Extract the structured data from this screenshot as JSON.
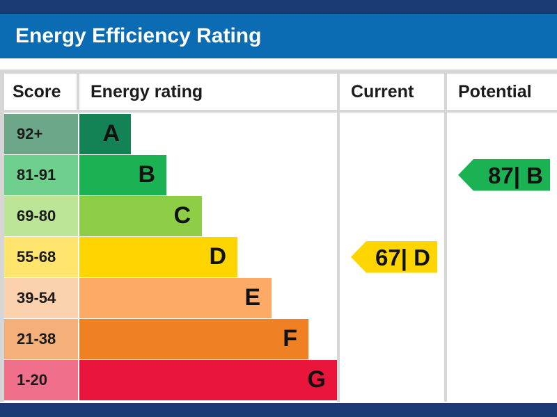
{
  "header": {
    "title": "Energy Efficiency Rating"
  },
  "columns": {
    "score": "Score",
    "energy_rating": "Energy rating",
    "current": "Current",
    "potential": "Potential"
  },
  "chart_data": {
    "type": "table",
    "bands": [
      {
        "score": "92+",
        "letter": "A",
        "color": "#138255",
        "score_bg": "#6da789"
      },
      {
        "score": "81-91",
        "letter": "B",
        "color": "#1bb254",
        "score_bg": "#6fd08e"
      },
      {
        "score": "69-80",
        "letter": "C",
        "color": "#8dce46",
        "score_bg": "#bce597"
      },
      {
        "score": "55-68",
        "letter": "D",
        "color": "#ffd500",
        "score_bg": "#ffe56e"
      },
      {
        "score": "39-54",
        "letter": "E",
        "color": "#fcaa65",
        "score_bg": "#fcd2ae"
      },
      {
        "score": "21-38",
        "letter": "F",
        "color": "#ef8023",
        "score_bg": "#f5b07a"
      },
      {
        "score": "1-20",
        "letter": "G",
        "color": "#e9153b",
        "score_bg": "#f06f8a"
      }
    ],
    "current": {
      "value": 67,
      "band": "D",
      "label": "67| D",
      "color": "#ffd500"
    },
    "potential": {
      "value": 87,
      "band": "B",
      "label": "87| B",
      "color": "#1bb254"
    }
  }
}
